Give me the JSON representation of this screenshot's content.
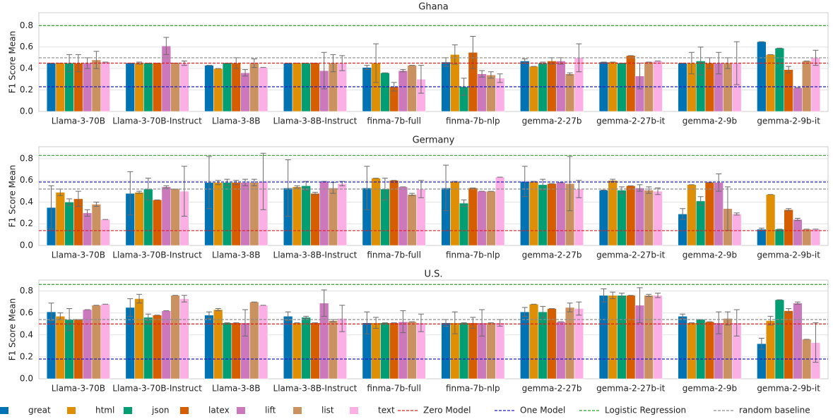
{
  "chart_data": [
    {
      "type": "bar",
      "title": "Ghana",
      "y_label": "F1 Score Mean",
      "categories": [
        "Llama-3-70B",
        "Llama-3-70B-Instruct",
        "Llama-3-8B",
        "Llama-3-8B-Instruct",
        "finma-7b-full",
        "finma-7b-nlp",
        "gemma-2-27b",
        "gemma-2-27b-it",
        "gemma-2-9b",
        "gemma-2-9b-it"
      ],
      "ylim": [
        0,
        0.92
      ],
      "yticks": [
        {
          "value": 0,
          "label": "0.0"
        },
        0.2,
        0.4,
        0.6,
        0.8
      ],
      "grid": true,
      "series": [
        {
          "name": "great",
          "color": "#0173b2",
          "values": [
            0.45,
            0.45,
            0.43,
            0.45,
            0.41,
            0.46,
            0.47,
            0.46,
            0.45,
            0.65
          ],
          "errors": [
            0,
            0,
            0,
            0,
            0.02,
            0.04,
            0.02,
            0,
            0,
            0
          ]
        },
        {
          "name": "html",
          "color": "#de8f05",
          "values": [
            0.45,
            0.45,
            0.4,
            0.45,
            0.45,
            0.53,
            0.42,
            0.46,
            0.45,
            0.53
          ],
          "errors": [
            0,
            0.01,
            0,
            0,
            0.18,
            0.09,
            0,
            0,
            0.1,
            0
          ]
        },
        {
          "name": "json",
          "color": "#029e73",
          "values": [
            0.45,
            0.45,
            0.45,
            0.45,
            0.36,
            0.23,
            0.45,
            0.45,
            0.47,
            0.59
          ],
          "errors": [
            0.08,
            0,
            0,
            0,
            0,
            0.08,
            0.01,
            0,
            0.13,
            0
          ]
        },
        {
          "name": "latex",
          "color": "#d55e00",
          "values": [
            0.45,
            0.45,
            0.45,
            0.45,
            0.23,
            0.55,
            0.47,
            0.52,
            0.45,
            0.39
          ],
          "errors": [
            0.08,
            0,
            0.05,
            0,
            0.04,
            0.15,
            0.03,
            0,
            0.05,
            0.03
          ]
        },
        {
          "name": "lift",
          "color": "#cc78bc",
          "values": [
            0.45,
            0.61,
            0.36,
            0.38,
            0.38,
            0.35,
            0.47,
            0.33,
            0.45,
            0.22
          ],
          "errors": [
            0.05,
            0.08,
            0.03,
            0.17,
            0.01,
            0.03,
            0.03,
            0.12,
            0.1,
            0
          ]
        },
        {
          "name": "list",
          "color": "#ca9161",
          "values": [
            0.48,
            0.45,
            0.45,
            0.45,
            0.43,
            0.34,
            0.35,
            0.46,
            0.45,
            0.47
          ],
          "errors": [
            0.08,
            0,
            0.04,
            0.08,
            0,
            0.03,
            0.01,
            0,
            0.05,
            0
          ]
        },
        {
          "name": "text",
          "color": "#fbafe4",
          "values": [
            0.46,
            0.45,
            0.41,
            0.45,
            0.3,
            0.31,
            0.5,
            0.47,
            0.45,
            0.5
          ],
          "errors": [
            0,
            0.02,
            0,
            0.07,
            0.13,
            0.04,
            0.13,
            0,
            0.2,
            0.07
          ]
        }
      ],
      "reference_lines": [
        {
          "name": "Zero Model",
          "color": "#e41a1c",
          "value": 0.45
        },
        {
          "name": "One Model",
          "color": "#1f1fcc",
          "value": 0.23
        },
        {
          "name": "Logistic Regression",
          "color": "#2ca02c",
          "value": 0.8
        },
        {
          "name": "random baseline",
          "color": "#8c8c8c",
          "value": 0.5
        }
      ]
    },
    {
      "type": "bar",
      "title": "Germany",
      "y_label": "F1 Score Mean",
      "categories": [
        "Llama-3-70B",
        "Llama-3-70B-Instruct",
        "Llama-3-8B",
        "Llama-3-8B-Instruct",
        "finma-7b-full",
        "finma-7b-nlp",
        "gemma-2-27b",
        "gemma-2-27b-it",
        "gemma-2-9b",
        "gemma-2-9b-it"
      ],
      "ylim": [
        0,
        0.91
      ],
      "yticks": [
        {
          "value": 0,
          "label": "0.0"
        },
        0.2,
        0.4,
        0.6,
        0.8
      ],
      "grid": true,
      "series": [
        {
          "name": "great",
          "color": "#0173b2",
          "values": [
            0.35,
            0.48,
            0.58,
            0.53,
            0.53,
            0.53,
            0.59,
            0.51,
            0.29,
            0.15
          ],
          "errors": [
            0.2,
            0.2,
            0.24,
            0.26,
            0.2,
            0.21,
            0.14,
            0,
            0.05,
            0.01
          ]
        },
        {
          "name": "html",
          "color": "#de8f05",
          "values": [
            0.49,
            0.49,
            0.58,
            0.54,
            0.62,
            0.59,
            0.59,
            0.6,
            0.56,
            0.47
          ],
          "errors": [
            0.03,
            0.01,
            0.02,
            0.01,
            0,
            0,
            0,
            0.01,
            0,
            0
          ]
        },
        {
          "name": "json",
          "color": "#029e73",
          "values": [
            0.4,
            0.52,
            0.58,
            0.55,
            0.52,
            0.39,
            0.56,
            0.51,
            0.41,
            0.15
          ],
          "errors": [
            0.03,
            0.1,
            0.03,
            0.04,
            0.1,
            0.03,
            0.05,
            0.03,
            0.04,
            0
          ]
        },
        {
          "name": "latex",
          "color": "#d55e00",
          "values": [
            0.43,
            0.42,
            0.58,
            0.48,
            0.6,
            0.53,
            0.57,
            0.55,
            0.58,
            0.33
          ],
          "errors": [
            0.07,
            0,
            0.02,
            0.01,
            0,
            0,
            0,
            0,
            0,
            0.01
          ]
        },
        {
          "name": "lift",
          "color": "#cc78bc",
          "values": [
            0.3,
            0.54,
            0.58,
            0.59,
            0.54,
            0.5,
            0.58,
            0.53,
            0.58,
            0.24
          ],
          "errors": [
            0.03,
            0.01,
            0.03,
            0,
            0,
            0,
            0,
            0.03,
            0.08,
            0.01
          ]
        },
        {
          "name": "list",
          "color": "#ca9161",
          "values": [
            0.38,
            0.52,
            0.58,
            0.53,
            0.47,
            0.5,
            0.57,
            0.51,
            0.34,
            0.15
          ],
          "errors": [
            0.02,
            0,
            0.03,
            0.05,
            0.01,
            0,
            0.25,
            0.03,
            0.2,
            0
          ]
        },
        {
          "name": "text",
          "color": "#fbafe4",
          "values": [
            0.24,
            0.5,
            0.59,
            0.57,
            0.52,
            0.63,
            0.52,
            0.5,
            0.29,
            0.15
          ],
          "errors": [
            0,
            0.23,
            0.26,
            0.02,
            0.08,
            0,
            0.08,
            0.03,
            0.01,
            0
          ]
        }
      ],
      "reference_lines": [
        {
          "name": "Zero Model",
          "color": "#e41a1c",
          "value": 0.137
        },
        {
          "name": "One Model",
          "color": "#1f1fcc",
          "value": 0.585
        },
        {
          "name": "Logistic Regression",
          "color": "#2ca02c",
          "value": 0.83
        },
        {
          "name": "random baseline",
          "color": "#8c8c8c",
          "value": 0.52
        }
      ]
    },
    {
      "type": "bar",
      "title": "U.S.",
      "y_label": "F1 Score Mean",
      "categories": [
        "Llama-3-70B",
        "Llama-3-70B-Instruct",
        "Llama-3-8B",
        "Llama-3-8B-Instruct",
        "finma-7b-full",
        "finma-7b-nlp",
        "gemma-2-27b",
        "gemma-2-27b-it",
        "gemma-2-9b",
        "gemma-2-9b-it"
      ],
      "ylim": [
        0,
        0.9
      ],
      "yticks": [
        {
          "value": 0,
          "label": "0.0"
        },
        0.2,
        0.4,
        0.6,
        0.8
      ],
      "grid": true,
      "series": [
        {
          "name": "great",
          "color": "#0173b2",
          "values": [
            0.61,
            0.65,
            0.58,
            0.57,
            0.51,
            0.51,
            0.61,
            0.76,
            0.57,
            0.32
          ],
          "errors": [
            0.08,
            0.08,
            0.03,
            0.04,
            0.1,
            0.03,
            0.04,
            0.06,
            0.02,
            0.05
          ]
        },
        {
          "name": "html",
          "color": "#de8f05",
          "values": [
            0.57,
            0.73,
            0.63,
            0.51,
            0.51,
            0.51,
            0.68,
            0.76,
            0.51,
            0.53
          ],
          "errors": [
            0.03,
            0.04,
            0.01,
            0,
            0.05,
            0.1,
            0,
            0.03,
            0,
            0.04
          ]
        },
        {
          "name": "json",
          "color": "#029e73",
          "values": [
            0.54,
            0.56,
            0.51,
            0.56,
            0.51,
            0.51,
            0.61,
            0.76,
            0.54,
            0.72
          ],
          "errors": [
            0.1,
            0.03,
            0,
            0.01,
            0,
            0,
            0.05,
            0.02,
            0,
            0
          ]
        },
        {
          "name": "latex",
          "color": "#d55e00",
          "values": [
            0.54,
            0.58,
            0.51,
            0.51,
            0.51,
            0.51,
            0.64,
            0.76,
            0.52,
            0.62
          ],
          "errors": [
            0,
            0,
            0,
            0,
            0,
            0.05,
            0,
            0,
            0,
            0.02
          ]
        },
        {
          "name": "lift",
          "color": "#cc78bc",
          "values": [
            0.63,
            0.62,
            0.51,
            0.69,
            0.52,
            0.51,
            0.52,
            0.67,
            0.51,
            0.69
          ],
          "errors": [
            0,
            0,
            0.12,
            0.12,
            0.1,
            0.12,
            0,
            0.16,
            0.1,
            0.01
          ]
        },
        {
          "name": "list",
          "color": "#ca9161",
          "values": [
            0.67,
            0.76,
            0.7,
            0.53,
            0.52,
            0.51,
            0.65,
            0.76,
            0.55,
            0.36
          ],
          "errors": [
            0,
            0,
            0,
            0.01,
            0,
            0,
            0.04,
            0.01,
            0.06,
            0
          ]
        },
        {
          "name": "text",
          "color": "#fbafe4",
          "values": [
            0.68,
            0.73,
            0.67,
            0.55,
            0.51,
            0.51,
            0.64,
            0.76,
            0.51,
            0.33
          ],
          "errors": [
            0,
            0.03,
            0,
            0.12,
            0.08,
            0.03,
            0.06,
            0.02,
            0.12,
            0.18
          ]
        }
      ],
      "reference_lines": [
        {
          "name": "Zero Model",
          "color": "#e41a1c",
          "value": 0.5
        },
        {
          "name": "One Model",
          "color": "#1f1fcc",
          "value": 0.18
        },
        {
          "name": "Logistic Regression",
          "color": "#2ca02c",
          "value": 0.86
        },
        {
          "name": "random baseline",
          "color": "#8c8c8c",
          "value": 0.54
        }
      ]
    }
  ]
}
